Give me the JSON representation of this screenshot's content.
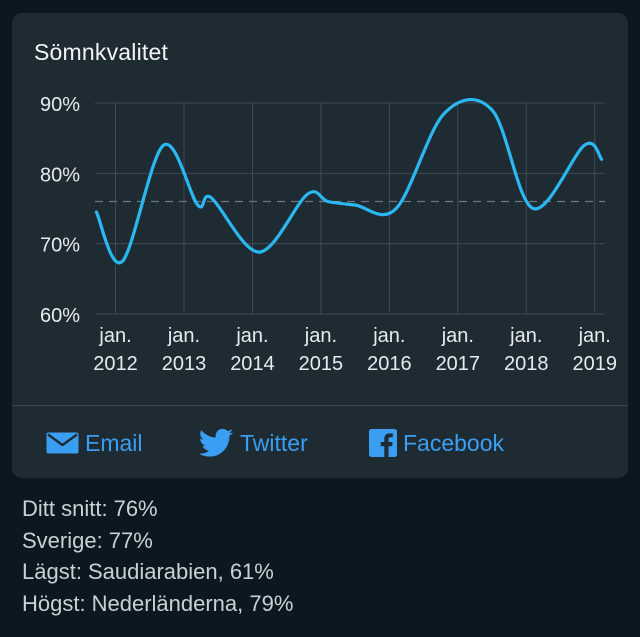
{
  "card": {
    "title": "Sömnkvalitet"
  },
  "share": {
    "email_label": "Email",
    "twitter_label": "Twitter",
    "facebook_label": "Facebook"
  },
  "stats": [
    {
      "label": "Ditt snitt:",
      "value": "76%"
    },
    {
      "label": "Sverige:",
      "value": "77%"
    },
    {
      "label": "Lägst:",
      "value": "Saudiarabien, 61%"
    },
    {
      "label": "Högst:",
      "value": "Nederländerna, 79%"
    }
  ],
  "colors": {
    "background": "#0c1820",
    "card": "#1f2b33",
    "line": "#2bb8f2",
    "accent": "#3a9ff2",
    "grid": "#3e4b55"
  },
  "chart_data": {
    "type": "line",
    "title": "",
    "xlabel": "",
    "ylabel": "",
    "ylim": [
      60,
      90
    ],
    "yticks": [
      60,
      70,
      80,
      90
    ],
    "ytick_labels": [
      "60%",
      "70%",
      "80%",
      "90%"
    ],
    "xticks": [
      {
        "x": 2012.0,
        "line1": "jan.",
        "line2": "2012"
      },
      {
        "x": 2013.0,
        "line1": "jan.",
        "line2": "2013"
      },
      {
        "x": 2014.0,
        "line1": "jan.",
        "line2": "2014"
      },
      {
        "x": 2015.0,
        "line1": "jan.",
        "line2": "2015"
      },
      {
        "x": 2016.0,
        "line1": "jan.",
        "line2": "2016"
      },
      {
        "x": 2017.0,
        "line1": "jan.",
        "line2": "2017"
      },
      {
        "x": 2018.0,
        "line1": "jan.",
        "line2": "2018"
      },
      {
        "x": 2019.0,
        "line1": "jan.",
        "line2": "2019"
      }
    ],
    "xlim": [
      2011.7,
      2019.15
    ],
    "average": 76,
    "grid": true,
    "series": [
      {
        "values": [
          [
            2011.72,
            74.5
          ],
          [
            2012.1,
            67.5
          ],
          [
            2012.7,
            84.0
          ],
          [
            2013.2,
            75.5
          ],
          [
            2013.4,
            76.5
          ],
          [
            2014.1,
            68.8
          ],
          [
            2014.8,
            77.0
          ],
          [
            2015.1,
            76.0
          ],
          [
            2015.5,
            75.5
          ],
          [
            2016.1,
            75.0
          ],
          [
            2016.8,
            88.5
          ],
          [
            2017.5,
            89.0
          ],
          [
            2018.1,
            75.0
          ],
          [
            2018.85,
            84.0
          ],
          [
            2019.1,
            82.0
          ]
        ]
      }
    ]
  }
}
